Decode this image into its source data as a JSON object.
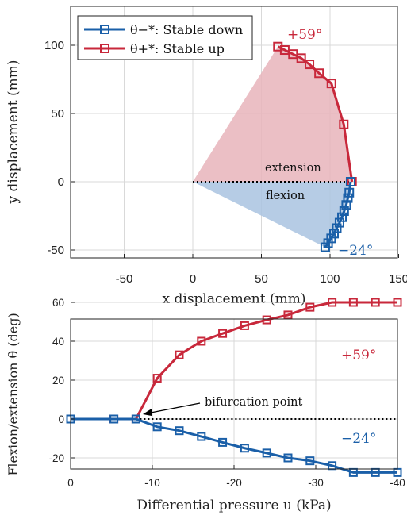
{
  "colors": {
    "stable_down": "#1a5fa8",
    "stable_up": "#c8283b",
    "fill_up": "#e8b4bb",
    "fill_down": "#a9c3e0"
  },
  "chart_data": [
    {
      "type": "scatter",
      "xlabel": "x displacement (mm)",
      "ylabel": "y displacement (mm)",
      "xlim": [
        -90,
        150
      ],
      "ylim": [
        -55,
        130
      ],
      "xticks": [
        "-50",
        "0",
        "50",
        "100",
        "150"
      ],
      "yticks": [
        "-50",
        "0",
        "50",
        "100"
      ],
      "grid": true,
      "legend_position": "top-left",
      "series": [
        {
          "name": "θ−*: Stable down",
          "points": [
            [
              115,
              0
            ],
            [
              114,
              -8
            ],
            [
              113,
              -12
            ],
            [
              111.8,
              -17
            ],
            [
              110.3,
              -21.5
            ],
            [
              108.7,
              -26
            ],
            [
              106.9,
              -30
            ],
            [
              104.9,
              -34
            ],
            [
              102.9,
              -38
            ],
            [
              100.8,
              -41.5
            ],
            [
              98.6,
              -45
            ],
            [
              96.5,
              -48
            ]
          ]
        },
        {
          "name": "θ+*: Stable up",
          "points": [
            [
              116,
              0
            ],
            [
              110,
              42
            ],
            [
              101,
              72
            ],
            [
              92,
              79.5
            ],
            [
              85,
              86
            ],
            [
              79,
              90.5
            ],
            [
              73,
              93.5
            ],
            [
              67,
              96.5
            ],
            [
              62,
              99
            ]
          ]
        }
      ],
      "annotations": [
        "extension",
        "flexion",
        "+59°",
        "−24°"
      ]
    },
    {
      "type": "line",
      "xlabel": "Differential pressure u (kPa)",
      "ylabel": "Flexion/extension θ (deg)",
      "xlim": [
        0,
        -40
      ],
      "ylim": [
        -32,
        68
      ],
      "xticks": [
        "0",
        "-10",
        "-20",
        "-30",
        "-40"
      ],
      "yticks": [
        "-20",
        "0",
        "20",
        "40",
        "60"
      ],
      "grid": true,
      "x": [
        0,
        -5.3,
        -8,
        -10.6,
        -13.3,
        -16,
        -18.6,
        -21.3,
        -24,
        -26.6,
        -29.3,
        -32,
        -34.6,
        -37.3,
        -40
      ],
      "series": [
        {
          "name": "θ−*",
          "values": [
            0,
            0,
            0,
            -4,
            -6,
            -9,
            -12,
            -15,
            -17.5,
            -20,
            -21.5,
            -24,
            -27.5,
            -27.5,
            -27.5
          ]
        },
        {
          "name": "θ+*",
          "values": [
            0,
            0,
            0,
            21,
            33,
            40,
            44,
            48,
            51,
            53.5,
            57.5,
            60,
            60,
            60,
            60
          ]
        }
      ],
      "annotations": [
        "bifurcation point",
        "+59°",
        "−24°"
      ]
    }
  ]
}
